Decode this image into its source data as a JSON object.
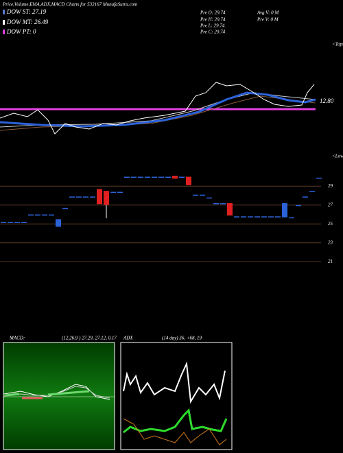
{
  "header": {
    "title": "Price,Volume,EMA,ADX,MACD Charts for 532167 MunafaSutra.com"
  },
  "legend": {
    "dow_st": "DOW ST: 27.19",
    "dow_mt": "DOW MT: 26.49",
    "dow_pt": "DOW PT: 0"
  },
  "ohlc": {
    "open": "Pre  O: 29.74",
    "high": "Pre  H: 29.74",
    "low": "Pre  L: 29.74",
    "close": "Pre  C: 29.74"
  },
  "volume": {
    "avg": "Avg  V: 0  M",
    "pre": "Pre  V: 0  M"
  },
  "price_marker": "12.80",
  "tops_label": "<Tops",
  "lows_label": "<Lows",
  "price_axis": {
    "ylim": [
      20,
      31
    ],
    "yticks": [
      29,
      27,
      25,
      23,
      21
    ]
  },
  "candles": [
    {
      "o": 25.2,
      "c": 25.2
    },
    {
      "o": 25.2,
      "c": 25.2
    },
    {
      "o": 25.2,
      "c": 25.2
    },
    {
      "o": 25.2,
      "c": 25.2
    },
    {
      "o": 26.0,
      "c": 26.0
    },
    {
      "o": 26.0,
      "c": 26.0
    },
    {
      "o": 26.0,
      "c": 26.0
    },
    {
      "o": 26.0,
      "c": 26.0
    },
    {
      "o": 24.7,
      "c": 25.5
    },
    {
      "o": 26.7,
      "c": 26.7
    },
    {
      "o": 27.9,
      "c": 27.9
    },
    {
      "o": 27.9,
      "c": 27.9
    },
    {
      "o": 27.9,
      "c": 27.9
    },
    {
      "o": 27.9,
      "c": 27.9
    },
    {
      "o": 28.7,
      "c": 27.1
    },
    {
      "o": 28.5,
      "c": 27.0,
      "l": 25.6
    },
    {
      "o": 28.4,
      "c": 28.4
    },
    {
      "o": 28.4,
      "c": 28.4
    },
    {
      "o": 30.0,
      "c": 30.0
    },
    {
      "o": 30.0,
      "c": 30.0
    },
    {
      "o": 30.0,
      "c": 30.0
    },
    {
      "o": 30.0,
      "c": 30.0
    },
    {
      "o": 30.0,
      "c": 30.0
    },
    {
      "o": 30.0,
      "c": 30.0
    },
    {
      "o": 30.0,
      "c": 30.0
    },
    {
      "o": 30.1,
      "c": 29.8
    },
    {
      "o": 30.0,
      "c": 30.0
    },
    {
      "o": 30.0,
      "c": 29.1
    },
    {
      "o": 28.1,
      "c": 28.1
    },
    {
      "o": 28.1,
      "c": 28.1
    },
    {
      "o": 27.8,
      "c": 27.8
    },
    {
      "o": 27.2,
      "c": 27.2
    },
    {
      "o": 27.2,
      "c": 27.2
    },
    {
      "o": 27.2,
      "c": 25.9
    },
    {
      "o": 25.8,
      "c": 25.8
    },
    {
      "o": 25.8,
      "c": 25.8
    },
    {
      "o": 25.8,
      "c": 25.8
    },
    {
      "o": 25.8,
      "c": 25.8
    },
    {
      "o": 25.8,
      "c": 25.8
    },
    {
      "o": 25.8,
      "c": 25.8
    },
    {
      "o": 25.8,
      "c": 25.8
    },
    {
      "o": 25.7,
      "c": 27.2
    },
    {
      "o": 25.7,
      "c": 25.7
    },
    {
      "o": 27.0,
      "c": 27.0
    },
    {
      "o": 27.9,
      "c": 27.9
    },
    {
      "o": 28.5,
      "c": 28.5
    },
    {
      "o": 29.9,
      "c": 29.9
    }
  ],
  "macd": {
    "label": "MACD:",
    "params": "(12,26,9 ) 27.29, 27.12, 0.17"
  },
  "adx": {
    "label": "ADX",
    "params": "(14 day) 36, +68, 19"
  }
}
